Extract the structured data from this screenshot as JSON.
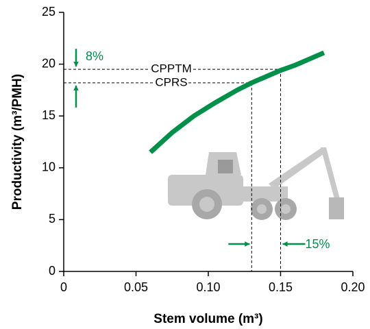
{
  "chart_data": {
    "type": "line",
    "x_label": "Stem volume (m³)",
    "y_label": "Productivity (m³/PMH)",
    "x": [
      0.06,
      0.075,
      0.09,
      0.105,
      0.12,
      0.13,
      0.14,
      0.15,
      0.16,
      0.17,
      0.18
    ],
    "values": [
      11.5,
      13.4,
      15.0,
      16.3,
      17.5,
      18.2,
      18.8,
      19.4,
      19.9,
      20.5,
      21.1
    ],
    "color": "#00904a",
    "xlim": [
      0,
      0.2
    ],
    "xticks": [
      0,
      0.05,
      {
        "value": 0.1,
        "label": "0.10"
      },
      0.15,
      {
        "value": 0.2,
        "label": "0.20"
      }
    ],
    "ylim": [
      0,
      25
    ],
    "yticks": [
      0,
      5,
      10,
      15,
      20,
      25
    ],
    "reference_lines": [
      {
        "label": "CPPTM",
        "x": 0.15,
        "y": 19.5
      },
      {
        "label": "CPRS",
        "x": 0.13,
        "y": 18.2
      }
    ],
    "annotations": [
      "8%",
      "15%"
    ]
  }
}
